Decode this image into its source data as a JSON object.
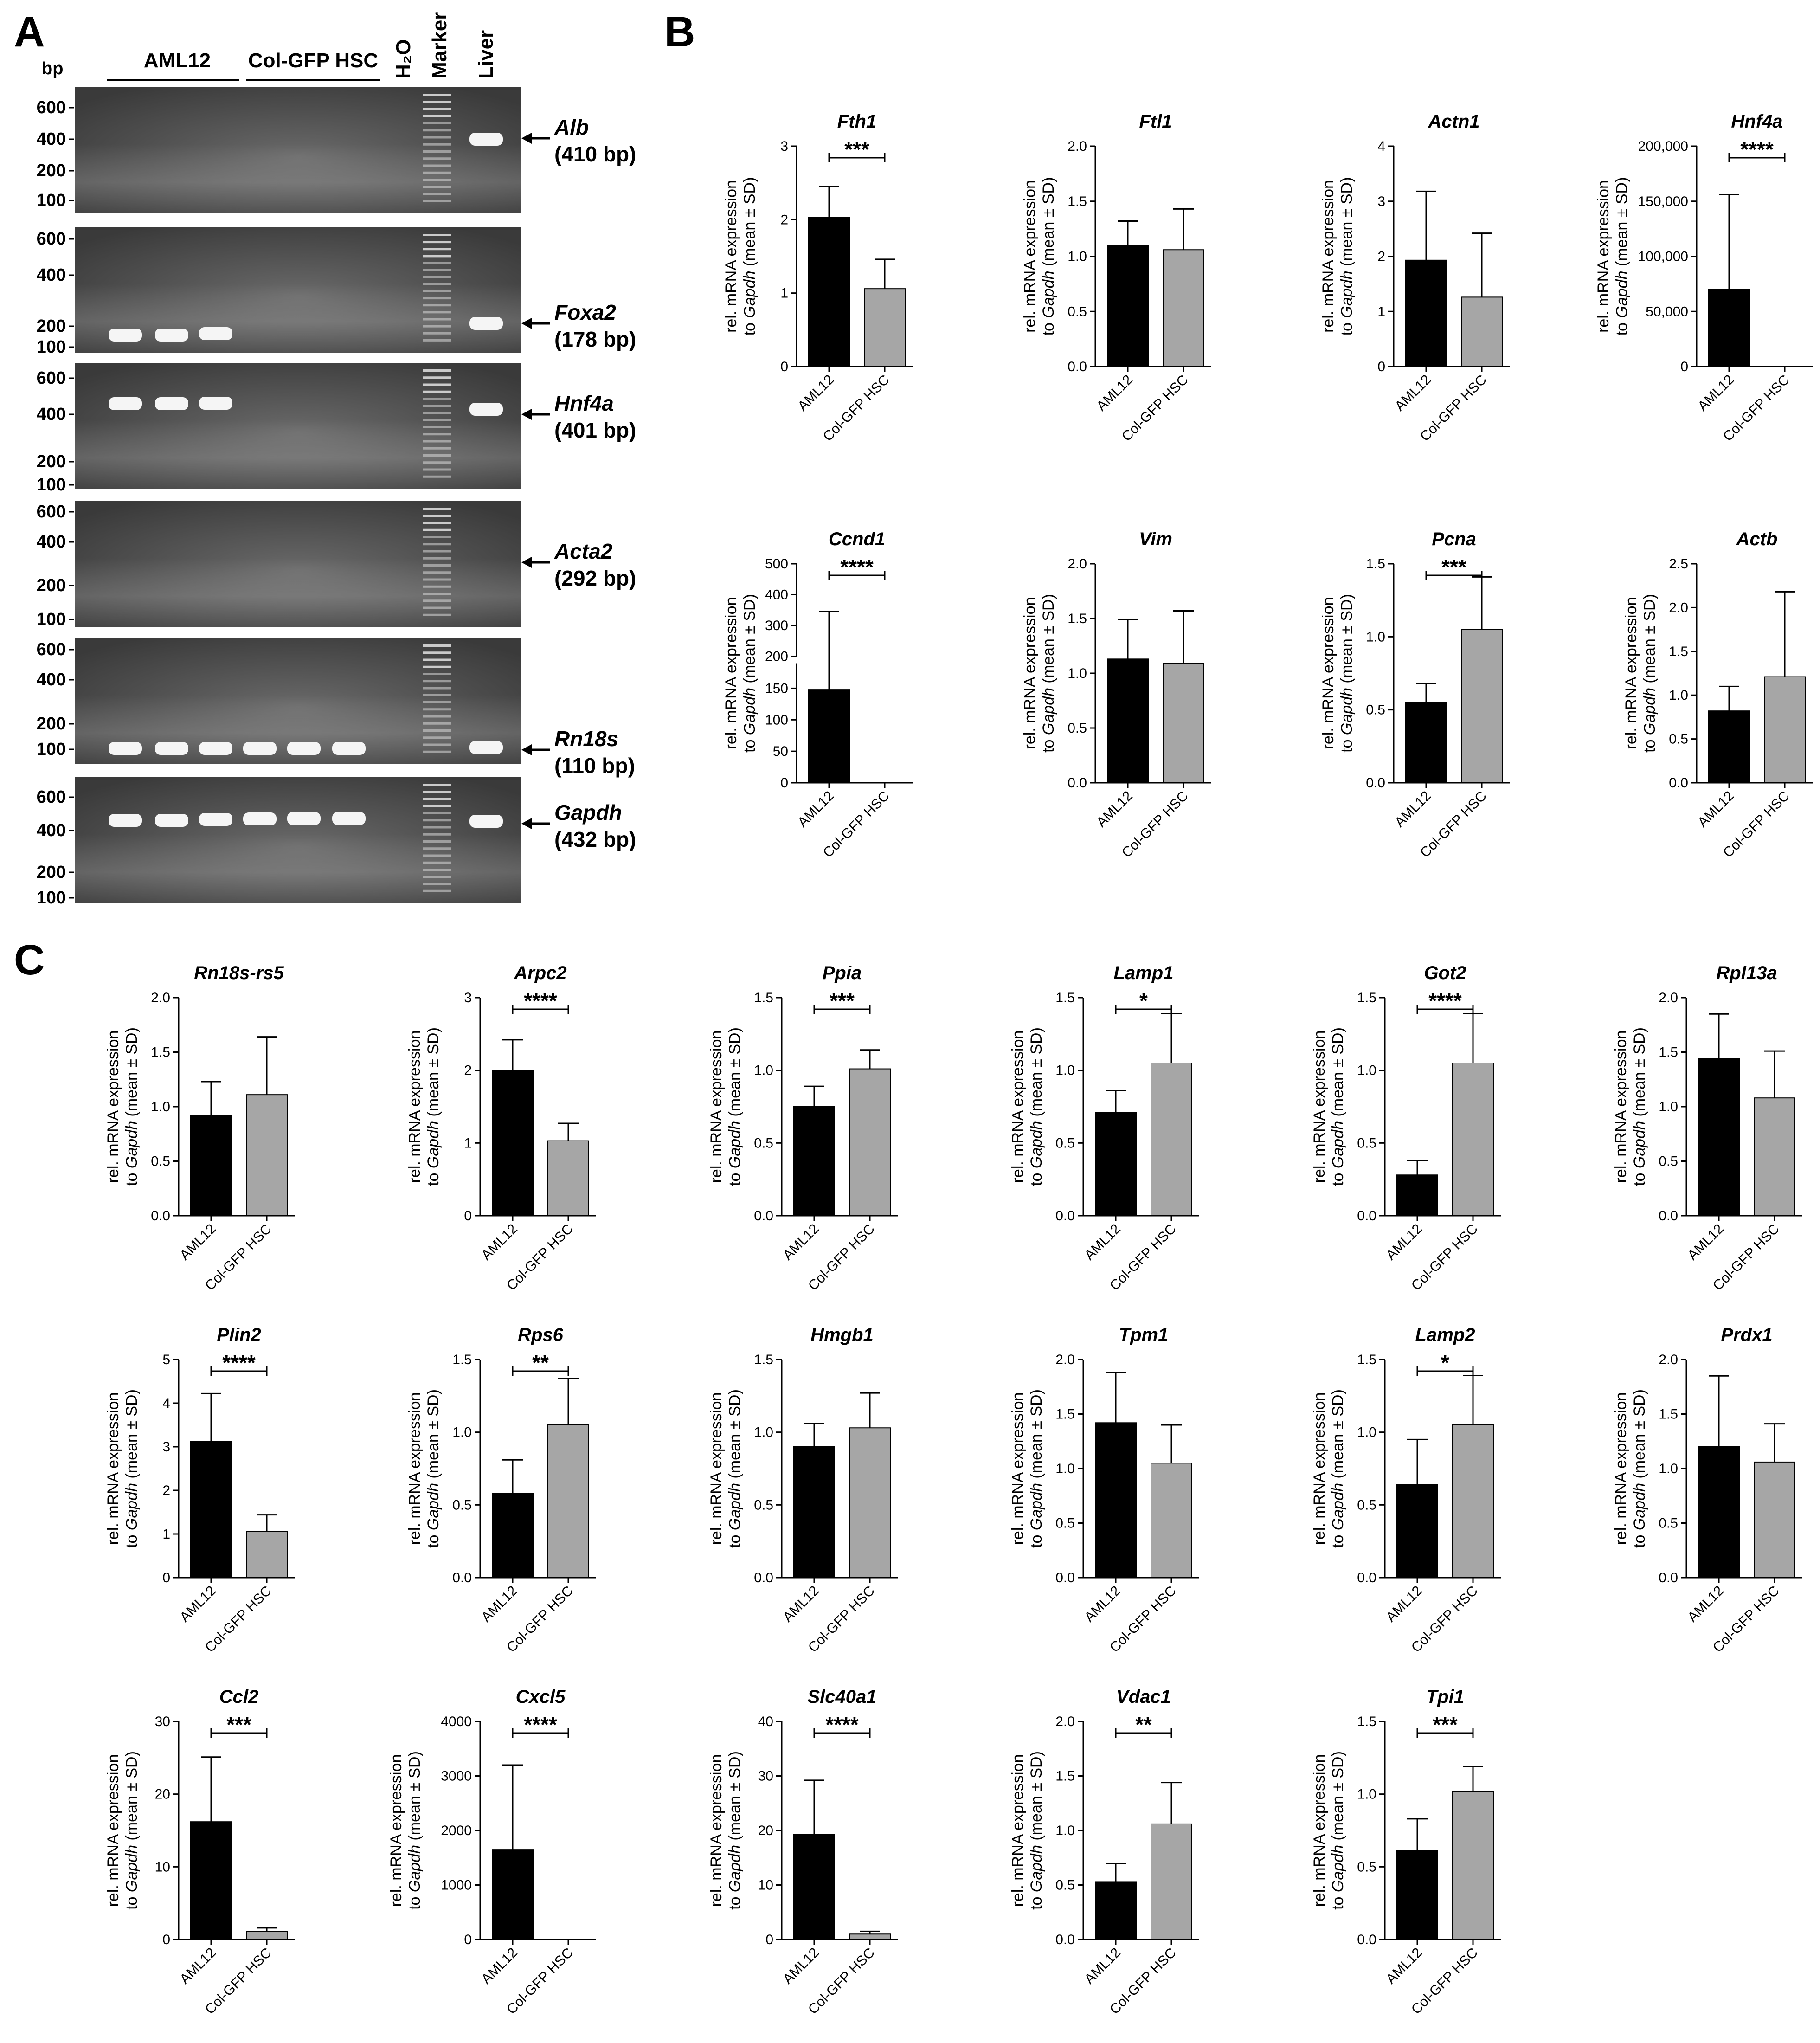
{
  "panels": {
    "a": "A",
    "b": "B",
    "c": "C"
  },
  "gel": {
    "bp_label": "bp",
    "headers": [
      "AML12",
      "Col-GFP HSC",
      "H₂O",
      "Marker",
      "Liver"
    ],
    "strips": [
      {
        "gene": "Alb",
        "size": "(410 bp)",
        "ladder": [
          "600",
          "400",
          "200",
          "100"
        ]
      },
      {
        "gene": "Foxa2",
        "size": "(178 bp)",
        "ladder": [
          "600",
          "400",
          "200",
          "100"
        ]
      },
      {
        "gene": "Hnf4a",
        "size": "(401 bp)",
        "ladder": [
          "600",
          "400",
          "200",
          "100"
        ]
      },
      {
        "gene": "Acta2",
        "size": "(292 bp)",
        "ladder": [
          "600",
          "400",
          "200",
          "100"
        ]
      },
      {
        "gene": "Rn18s",
        "size": "(110 bp)",
        "ladder": [
          "600",
          "400",
          "200",
          "100"
        ]
      },
      {
        "gene": "Gapdh",
        "size": "(432 bp)",
        "ladder": [
          "600",
          "400",
          "200",
          "100"
        ]
      }
    ]
  },
  "ylabel_line1": "rel. mRNA expression",
  "ylabel_line2_pre": "to ",
  "ylabel_line2_gene": "Gapdh",
  "ylabel_line2_post": " (mean ± SD)",
  "colors": {
    "AML12": "#000000",
    "Col-GFP HSC": "#a6a6a6"
  },
  "chart_data": [
    {
      "type": "bar",
      "title": "Fth1",
      "categories": [
        "AML12",
        "Col-GFP HSC"
      ],
      "values": [
        2.03,
        1.06
      ],
      "errors": [
        0.42,
        0.4
      ],
      "ylim": [
        0,
        3
      ],
      "yticks": [
        0,
        1,
        2,
        3
      ],
      "ytick_labels": [
        "0",
        "1",
        "2",
        "3"
      ],
      "significance": "***"
    },
    {
      "type": "bar",
      "title": "Ftl1",
      "categories": [
        "AML12",
        "Col-GFP HSC"
      ],
      "values": [
        1.1,
        1.06
      ],
      "errors": [
        0.22,
        0.37
      ],
      "ylim": [
        0,
        2
      ],
      "yticks": [
        0,
        0.5,
        1,
        1.5,
        2
      ],
      "ytick_labels": [
        "0.0",
        "0.5",
        "1.0",
        "1.5",
        "2.0"
      ],
      "significance": ""
    },
    {
      "type": "bar",
      "title": "Actn1",
      "categories": [
        "AML12",
        "Col-GFP HSC"
      ],
      "values": [
        1.93,
        1.26
      ],
      "errors": [
        1.25,
        1.16
      ],
      "ylim": [
        0,
        4
      ],
      "yticks": [
        0,
        1,
        2,
        3,
        4
      ],
      "ytick_labels": [
        "0",
        "1",
        "2",
        "3",
        "4"
      ],
      "significance": ""
    },
    {
      "type": "bar",
      "title": "Hnf4a",
      "categories": [
        "AML12",
        "Col-GFP HSC"
      ],
      "values": [
        70000,
        0
      ],
      "errors": [
        86000,
        0
      ],
      "ylim": [
        0,
        200000
      ],
      "yticks": [
        0,
        50000,
        100000,
        150000,
        200000
      ],
      "ytick_labels": [
        "0",
        "50,000",
        "100,000",
        "150,000",
        "200,000"
      ],
      "significance": "****"
    },
    {
      "type": "bar",
      "title": "Ccnd1",
      "categories": [
        "AML12",
        "Col-GFP HSC"
      ],
      "values": [
        148,
        0.5
      ],
      "errors": [
        197,
        0
      ],
      "ylim": [
        0,
        500
      ],
      "broken_axis": true,
      "yticks": [
        0,
        50,
        100,
        150,
        200,
        300,
        400,
        500
      ],
      "ytick_labels": [
        "0",
        "50",
        "100",
        "150",
        "200",
        "300",
        "400",
        "500"
      ],
      "significance": "****"
    },
    {
      "type": "bar",
      "title": "Vim",
      "categories": [
        "AML12",
        "Col-GFP HSC"
      ],
      "values": [
        1.13,
        1.09
      ],
      "errors": [
        0.36,
        0.48
      ],
      "ylim": [
        0,
        2
      ],
      "yticks": [
        0,
        0.5,
        1,
        1.5,
        2
      ],
      "ytick_labels": [
        "0.0",
        "0.5",
        "1.0",
        "1.5",
        "2.0"
      ],
      "significance": ""
    },
    {
      "type": "bar",
      "title": "Pcna",
      "categories": [
        "AML12",
        "Col-GFP HSC"
      ],
      "values": [
        0.55,
        1.05
      ],
      "errors": [
        0.13,
        0.36
      ],
      "ylim": [
        0,
        1.5
      ],
      "yticks": [
        0,
        0.5,
        1,
        1.5
      ],
      "ytick_labels": [
        "0.0",
        "0.5",
        "1.0",
        "1.5"
      ],
      "significance": "***"
    },
    {
      "type": "bar",
      "title": "Actb",
      "categories": [
        "AML12",
        "Col-GFP HSC"
      ],
      "values": [
        0.82,
        1.21
      ],
      "errors": [
        0.28,
        0.97
      ],
      "ylim": [
        0,
        2.5
      ],
      "yticks": [
        0,
        0.5,
        1,
        1.5,
        2,
        2.5
      ],
      "ytick_labels": [
        "0.0",
        "0.5",
        "1.0",
        "1.5",
        "2.0",
        "2.5"
      ],
      "significance": ""
    },
    {
      "type": "bar",
      "title": "Rn18s-rs5",
      "categories": [
        "AML12",
        "Col-GFP HSC"
      ],
      "values": [
        0.92,
        1.11
      ],
      "errors": [
        0.31,
        0.53
      ],
      "ylim": [
        0,
        2
      ],
      "yticks": [
        0,
        0.5,
        1,
        1.5,
        2
      ],
      "ytick_labels": [
        "0.0",
        "0.5",
        "1.0",
        "1.5",
        "2.0"
      ],
      "significance": ""
    },
    {
      "type": "bar",
      "title": "Arpc2",
      "categories": [
        "AML12",
        "Col-GFP HSC"
      ],
      "values": [
        2.0,
        1.03
      ],
      "errors": [
        0.42,
        0.24
      ],
      "ylim": [
        0,
        3
      ],
      "yticks": [
        0,
        1,
        2,
        3
      ],
      "ytick_labels": [
        "0",
        "1",
        "2",
        "3"
      ],
      "significance": "****"
    },
    {
      "type": "bar",
      "title": "Ppia",
      "categories": [
        "AML12",
        "Col-GFP HSC"
      ],
      "values": [
        0.75,
        1.01
      ],
      "errors": [
        0.14,
        0.13
      ],
      "ylim": [
        0,
        1.5
      ],
      "yticks": [
        0,
        0.5,
        1,
        1.5
      ],
      "ytick_labels": [
        "0.0",
        "0.5",
        "1.0",
        "1.5"
      ],
      "significance": "***"
    },
    {
      "type": "bar",
      "title": "Lamp1",
      "categories": [
        "AML12",
        "Col-GFP HSC"
      ],
      "values": [
        0.71,
        1.05
      ],
      "errors": [
        0.15,
        0.34
      ],
      "ylim": [
        0,
        1.5
      ],
      "yticks": [
        0,
        0.5,
        1,
        1.5
      ],
      "ytick_labels": [
        "0.0",
        "0.5",
        "1.0",
        "1.5"
      ],
      "significance": "*"
    },
    {
      "type": "bar",
      "title": "Got2",
      "categories": [
        "AML12",
        "Col-GFP HSC"
      ],
      "values": [
        0.28,
        1.05
      ],
      "errors": [
        0.1,
        0.34
      ],
      "ylim": [
        0,
        1.5
      ],
      "yticks": [
        0,
        0.5,
        1,
        1.5
      ],
      "ytick_labels": [
        "0.0",
        "0.5",
        "1.0",
        "1.5"
      ],
      "significance": "****"
    },
    {
      "type": "bar",
      "title": "Rpl13a",
      "categories": [
        "AML12",
        "Col-GFP HSC"
      ],
      "values": [
        1.44,
        1.08
      ],
      "errors": [
        0.41,
        0.43
      ],
      "ylim": [
        0,
        2
      ],
      "yticks": [
        0,
        0.5,
        1,
        1.5,
        2
      ],
      "ytick_labels": [
        "0.0",
        "0.5",
        "1.0",
        "1.5",
        "2.0"
      ],
      "significance": ""
    },
    {
      "type": "bar",
      "title": "Plin2",
      "categories": [
        "AML12",
        "Col-GFP HSC"
      ],
      "values": [
        3.12,
        1.06
      ],
      "errors": [
        1.1,
        0.38
      ],
      "ylim": [
        0,
        5
      ],
      "yticks": [
        0,
        1,
        2,
        3,
        4,
        5
      ],
      "ytick_labels": [
        "0",
        "1",
        "2",
        "3",
        "4",
        "5"
      ],
      "significance": "****"
    },
    {
      "type": "bar",
      "title": "Rps6",
      "categories": [
        "AML12",
        "Col-GFP HSC"
      ],
      "values": [
        0.58,
        1.05
      ],
      "errors": [
        0.23,
        0.32
      ],
      "ylim": [
        0,
        1.5
      ],
      "yticks": [
        0,
        0.5,
        1,
        1.5
      ],
      "ytick_labels": [
        "0.0",
        "0.5",
        "1.0",
        "1.5"
      ],
      "significance": "**"
    },
    {
      "type": "bar",
      "title": "Hmgb1",
      "categories": [
        "AML12",
        "Col-GFP HSC"
      ],
      "values": [
        0.9,
        1.03
      ],
      "errors": [
        0.16,
        0.24
      ],
      "ylim": [
        0,
        1.5
      ],
      "yticks": [
        0,
        0.5,
        1,
        1.5
      ],
      "ytick_labels": [
        "0.0",
        "0.5",
        "1.0",
        "1.5"
      ],
      "significance": ""
    },
    {
      "type": "bar",
      "title": "Tpm1",
      "categories": [
        "AML12",
        "Col-GFP HSC"
      ],
      "values": [
        1.42,
        1.05
      ],
      "errors": [
        0.46,
        0.35
      ],
      "ylim": [
        0,
        2
      ],
      "yticks": [
        0,
        0.5,
        1,
        1.5,
        2
      ],
      "ytick_labels": [
        "0.0",
        "0.5",
        "1.0",
        "1.5",
        "2.0"
      ],
      "significance": ""
    },
    {
      "type": "bar",
      "title": "Lamp2",
      "categories": [
        "AML12",
        "Col-GFP HSC"
      ],
      "values": [
        0.64,
        1.05
      ],
      "errors": [
        0.31,
        0.34
      ],
      "ylim": [
        0,
        1.5
      ],
      "yticks": [
        0,
        0.5,
        1,
        1.5
      ],
      "ytick_labels": [
        "0.0",
        "0.5",
        "1.0",
        "1.5"
      ],
      "significance": "*"
    },
    {
      "type": "bar",
      "title": "Prdx1",
      "categories": [
        "AML12",
        "Col-GFP HSC"
      ],
      "values": [
        1.2,
        1.06
      ],
      "errors": [
        0.65,
        0.35
      ],
      "ylim": [
        0,
        2
      ],
      "yticks": [
        0,
        0.5,
        1,
        1.5,
        2
      ],
      "ytick_labels": [
        "0.0",
        "0.5",
        "1.0",
        "1.5",
        "2.0"
      ],
      "significance": ""
    },
    {
      "type": "bar",
      "title": "Ccl2",
      "categories": [
        "AML12",
        "Col-GFP HSC"
      ],
      "values": [
        16.2,
        1.1
      ],
      "errors": [
        8.9,
        0.5
      ],
      "ylim": [
        0,
        30
      ],
      "yticks": [
        0,
        10,
        20,
        30
      ],
      "ytick_labels": [
        "0",
        "10",
        "20",
        "30"
      ],
      "significance": "***"
    },
    {
      "type": "bar",
      "title": "Cxcl5",
      "categories": [
        "AML12",
        "Col-GFP HSC"
      ],
      "values": [
        1650,
        1
      ],
      "errors": [
        1550,
        0
      ],
      "ylim": [
        0,
        4000
      ],
      "yticks": [
        0,
        1000,
        2000,
        3000,
        4000
      ],
      "ytick_labels": [
        "0",
        "1000",
        "2000",
        "3000",
        "4000"
      ],
      "significance": "****"
    },
    {
      "type": "bar",
      "title": "Slc40a1",
      "categories": [
        "AML12",
        "Col-GFP HSC"
      ],
      "values": [
        19.3,
        1.0
      ],
      "errors": [
        9.9,
        0.5
      ],
      "ylim": [
        0,
        40
      ],
      "yticks": [
        0,
        10,
        20,
        30,
        40
      ],
      "ytick_labels": [
        "0",
        "10",
        "20",
        "30",
        "40"
      ],
      "significance": "****"
    },
    {
      "type": "bar",
      "title": "Vdac1",
      "categories": [
        "AML12",
        "Col-GFP HSC"
      ],
      "values": [
        0.53,
        1.06
      ],
      "errors": [
        0.17,
        0.38
      ],
      "ylim": [
        0,
        2
      ],
      "yticks": [
        0,
        0.5,
        1,
        1.5,
        2
      ],
      "ytick_labels": [
        "0.0",
        "0.5",
        "1.0",
        "1.5",
        "2.0"
      ],
      "significance": "**"
    },
    {
      "type": "bar",
      "title": "Tpi1",
      "categories": [
        "AML12",
        "Col-GFP HSC"
      ],
      "values": [
        0.61,
        1.02
      ],
      "errors": [
        0.22,
        0.17
      ],
      "ylim": [
        0,
        1.5
      ],
      "yticks": [
        0,
        0.5,
        1,
        1.5
      ],
      "ytick_labels": [
        "0.0",
        "0.5",
        "1.0",
        "1.5"
      ],
      "significance": "***"
    }
  ]
}
